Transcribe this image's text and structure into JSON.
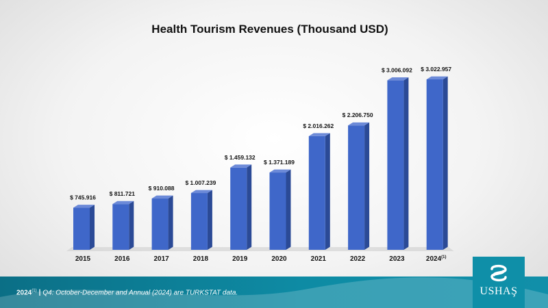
{
  "chart_data": {
    "type": "bar",
    "title": "Health Tourism Revenues (Thousand USD)",
    "categories": [
      "2015",
      "2016",
      "2017",
      "2018",
      "2019",
      "2020",
      "2021",
      "2022",
      "2023",
      "2024"
    ],
    "category_suffix": [
      "",
      "",
      "",
      "",
      "",
      "",
      "",
      "",
      "",
      "(1)"
    ],
    "values": [
      745916,
      811721,
      910088,
      1007239,
      1459132,
      1371189,
      2016262,
      2206750,
      3006092,
      3022957
    ],
    "value_labels": [
      "$ 745.916",
      "$ 811.721",
      "$ 910.088",
      "$ 1.007.239",
      "$ 1.459.132",
      "$ 1.371.189",
      "$ 2.016.262",
      "$ 2.206.750",
      "$ 3.006.092",
      "$ 3.022.957"
    ],
    "ylim": [
      0,
      3100000
    ],
    "bar_color": "#3f67c9",
    "bar_side_color": "#2b4a96",
    "bar_top_color": "#6c8ad8"
  },
  "footer": {
    "year": "2024",
    "superscript": "(1)",
    "separator": "|",
    "note": "Q4: October-December and Annual (2024) are TURKSTAT data."
  },
  "logo": {
    "text": "USHAŞ"
  }
}
